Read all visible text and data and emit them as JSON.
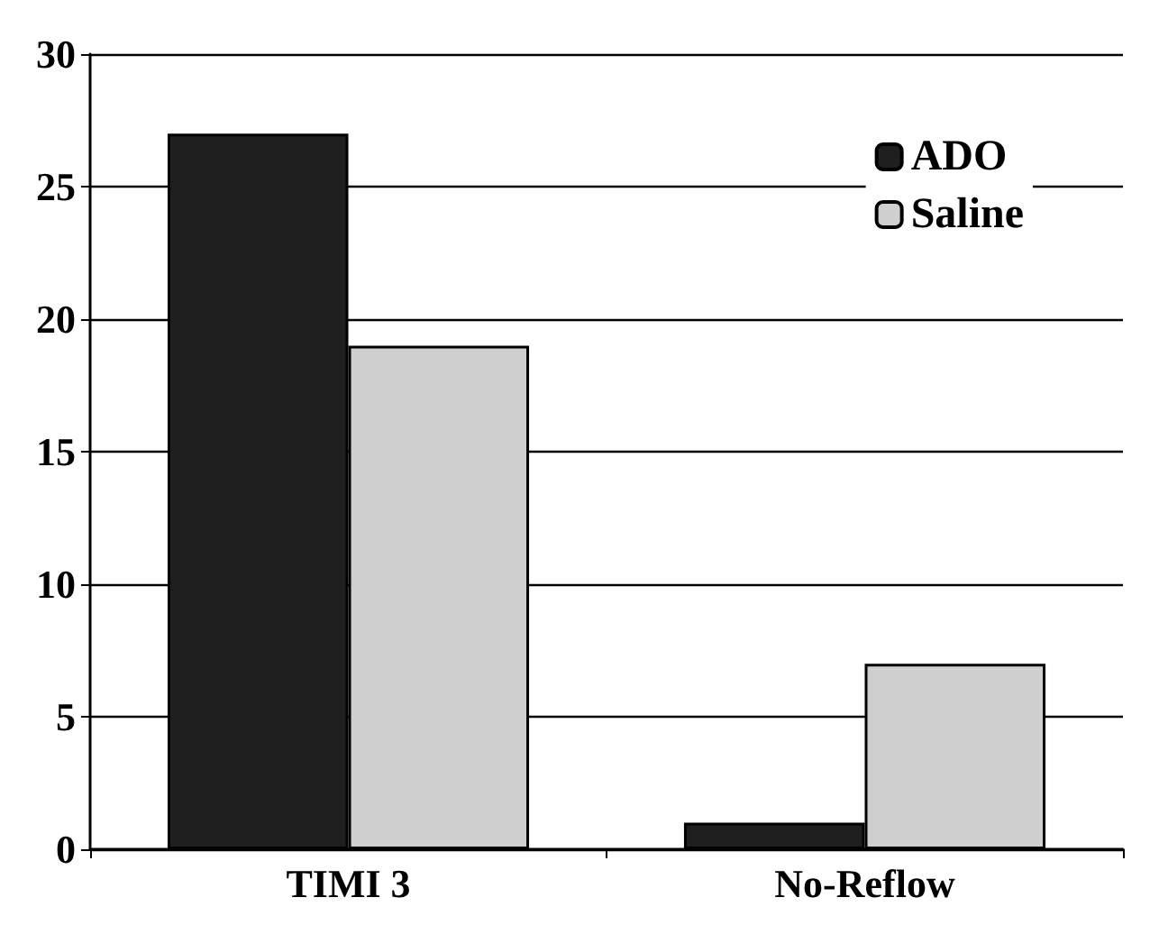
{
  "chart_data": {
    "type": "bar",
    "categories": [
      "TIMI 3",
      "No-Reflow"
    ],
    "series": [
      {
        "name": "ADO",
        "color": "#1f1f1f",
        "values": [
          27,
          1
        ]
      },
      {
        "name": "Saline",
        "color": "#cfcfcf",
        "values": [
          19,
          7
        ]
      }
    ],
    "ylim": [
      0,
      30
    ],
    "yticks": [
      0,
      5,
      10,
      15,
      20,
      25,
      30
    ],
    "grid": "y",
    "legend": "top right"
  }
}
